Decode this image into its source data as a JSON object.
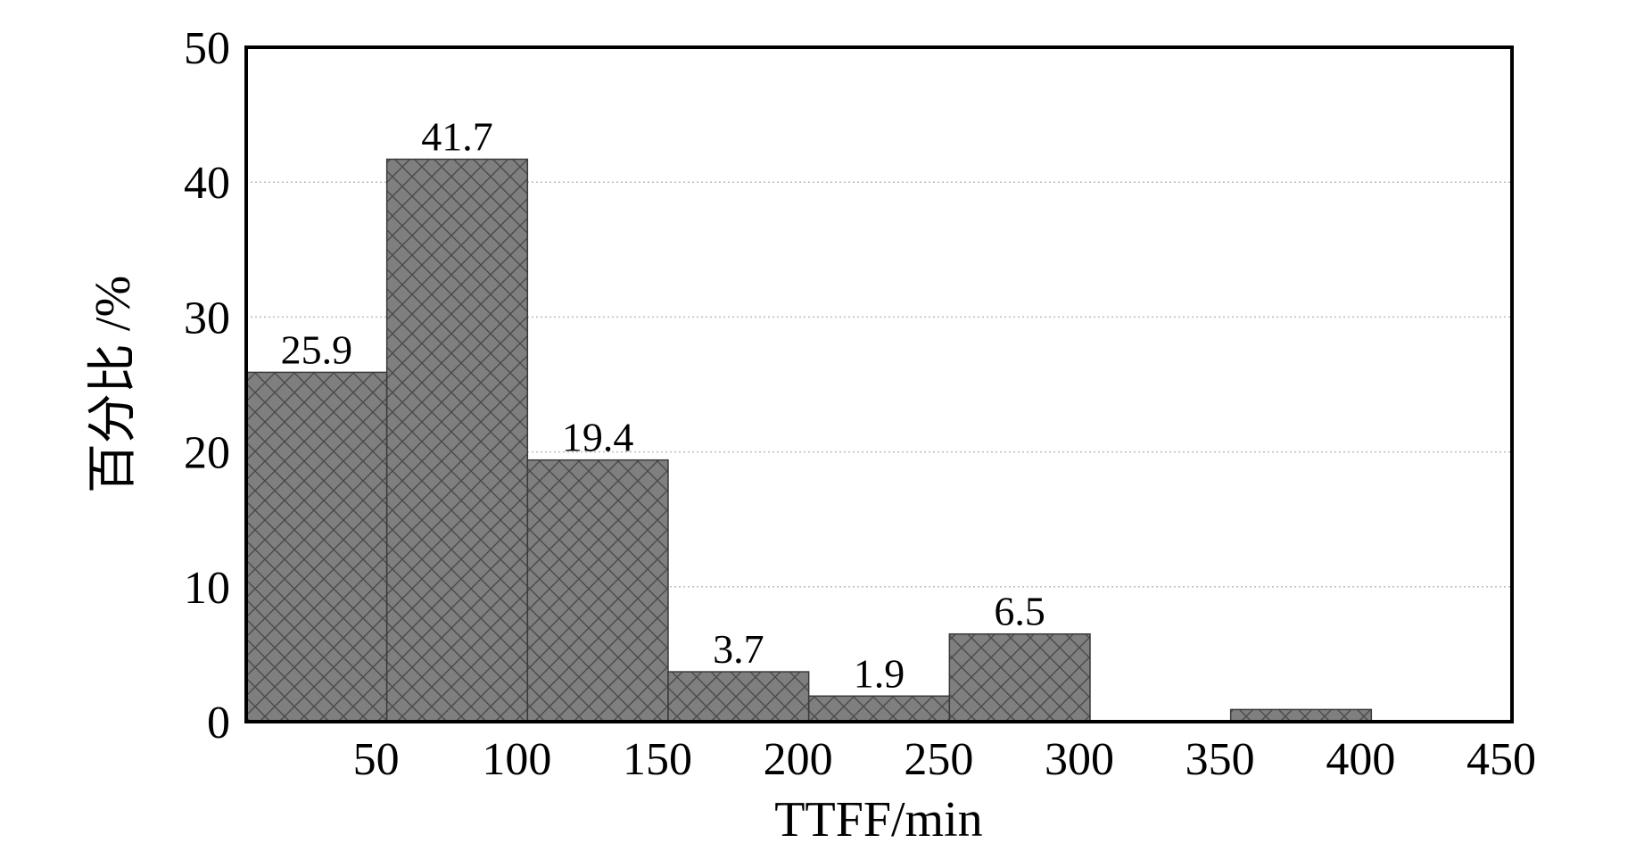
{
  "chart_data": {
    "type": "bar",
    "title": "",
    "xlabel": "TTFF/min",
    "ylabel": "百分比 /%",
    "ylim": [
      0,
      50
    ],
    "yticks": [
      "0",
      "10",
      "20",
      "30",
      "40",
      "50"
    ],
    "xticks": [
      "50",
      "100",
      "150",
      "200",
      "250",
      "300",
      "350",
      "400",
      "450"
    ],
    "grid": "horizontal dotted",
    "bar_color": "#7f7f7f",
    "bar_pattern": "crosshatch",
    "categories": [
      "0-50",
      "50-100",
      "100-150",
      "150-200",
      "200-250",
      "250-300",
      "300-350",
      "350-400",
      "400-450"
    ],
    "values": [
      25.9,
      41.7,
      19.4,
      3.7,
      1.9,
      6.5,
      0,
      0.9,
      0
    ],
    "data_labels": [
      "25.9",
      "41.7",
      "19.4",
      "3.7",
      "1.9",
      "6.5",
      "",
      "",
      ""
    ]
  }
}
